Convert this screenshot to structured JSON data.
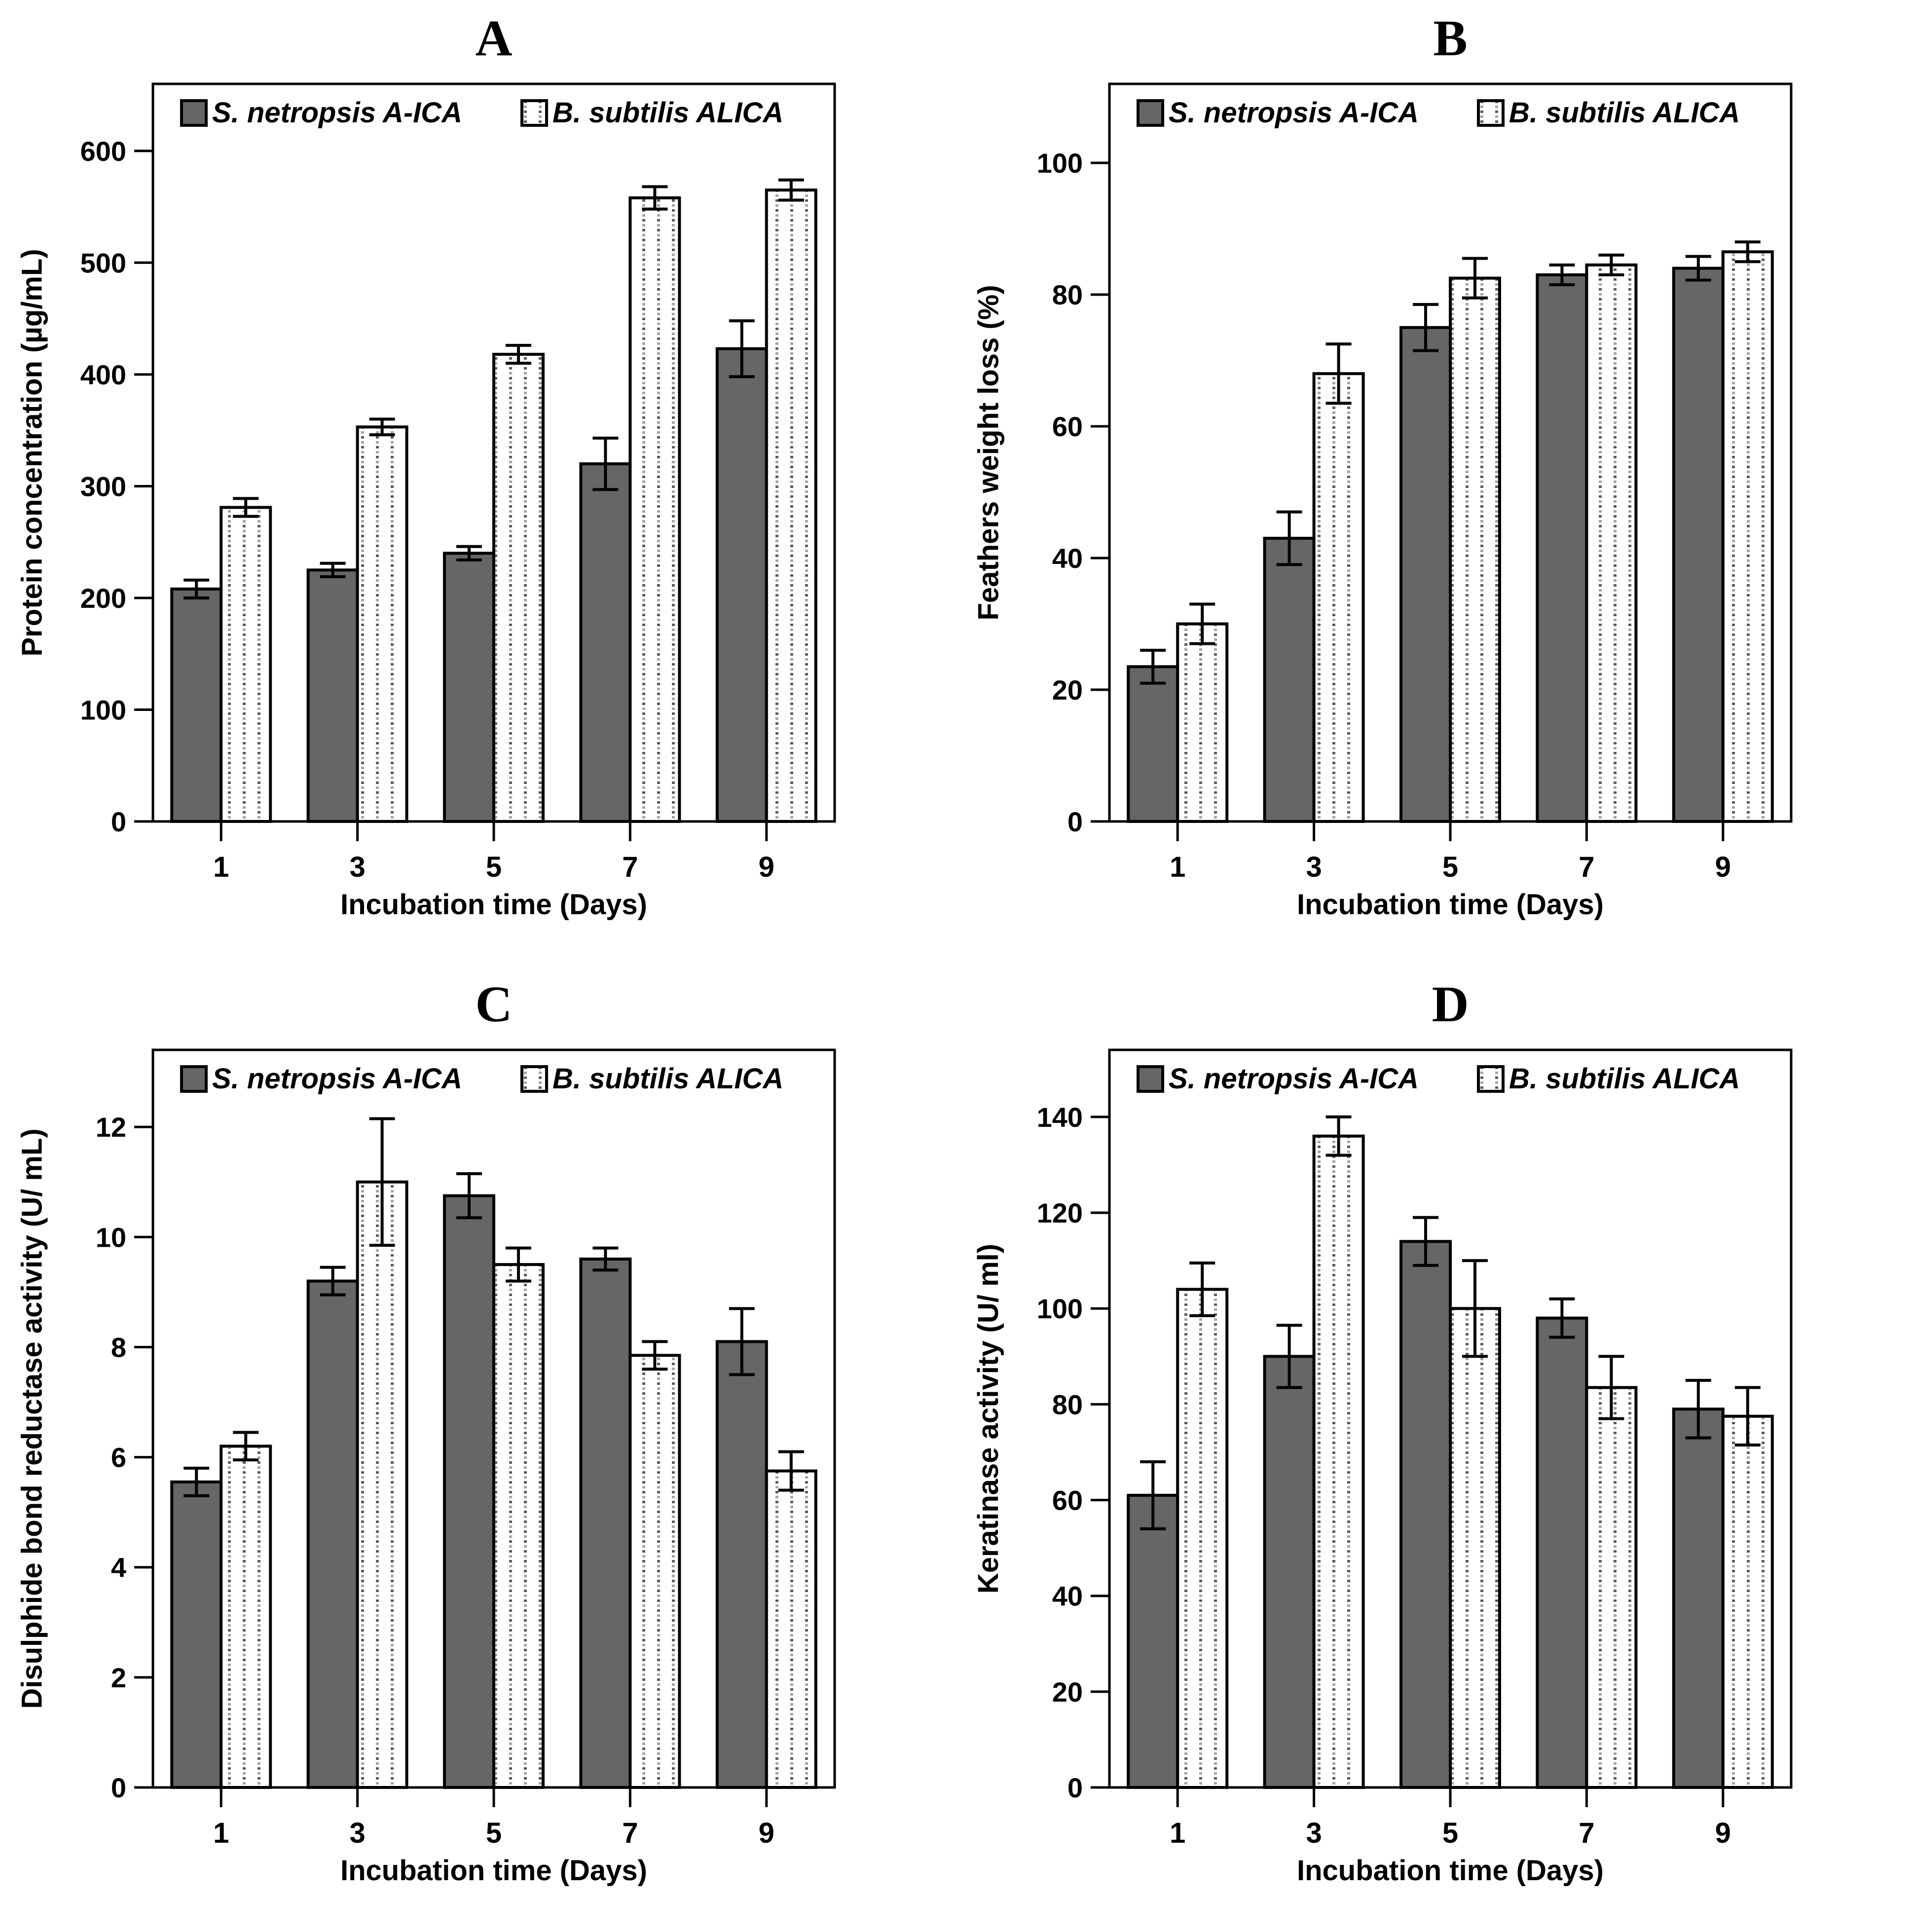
{
  "figure": {
    "legend": [
      {
        "label": "S. netropsis A-ICA",
        "swatch": "solid-gray-square"
      },
      {
        "label": "B. subtilis ALICA",
        "swatch": "dotted-white-square"
      }
    ],
    "colors": {
      "bar_dark": "#666666",
      "bar_dotted_bg": "#ffffff",
      "dot": "#5a5a5a",
      "axis": "#000000",
      "text": "#000000",
      "background": "#ffffff"
    }
  },
  "chart_data": [
    {
      "type": "bar",
      "panel_label": "A",
      "xlabel": "Incubation time (Days)",
      "ylabel": "Protein concentration (µg/mL)",
      "categories": [
        "1",
        "3",
        "5",
        "7",
        "9"
      ],
      "yticks": [
        0,
        100,
        200,
        300,
        400,
        500,
        600
      ],
      "ylim": [
        0,
        660
      ],
      "grid": false,
      "legend_position": "top-inside",
      "series": [
        {
          "name": "S. netropsis A-ICA",
          "values": [
            208,
            225,
            240,
            320,
            423
          ],
          "errors": [
            8,
            6,
            6,
            23,
            25
          ]
        },
        {
          "name": "B. subtilis ALICA",
          "values": [
            281,
            353,
            418,
            558,
            565
          ],
          "errors": [
            8,
            7,
            8,
            10,
            9
          ]
        }
      ]
    },
    {
      "type": "bar",
      "panel_label": "B",
      "xlabel": "Incubation time (Days)",
      "ylabel": "Feathers weight loss (%)",
      "categories": [
        "1",
        "3",
        "5",
        "7",
        "9"
      ],
      "yticks": [
        0,
        20,
        40,
        60,
        80,
        100
      ],
      "ylim": [
        0,
        112
      ],
      "grid": false,
      "legend_position": "top-inside",
      "series": [
        {
          "name": "S. netropsis A-ICA",
          "values": [
            23.5,
            43,
            75,
            83,
            84
          ],
          "errors": [
            2.5,
            4,
            3.5,
            1.5,
            1.8
          ]
        },
        {
          "name": "B. subtilis ALICA",
          "values": [
            30,
            68,
            82.5,
            84.5,
            86.5
          ],
          "errors": [
            3,
            4.5,
            3,
            1.5,
            1.5
          ]
        }
      ]
    },
    {
      "type": "bar",
      "panel_label": "C",
      "xlabel": "Incubation time (Days)",
      "ylabel": "Disulphide bond reductase activity (U/ mL)",
      "categories": [
        "1",
        "3",
        "5",
        "7",
        "9"
      ],
      "yticks": [
        0,
        2,
        4,
        6,
        8,
        10,
        12
      ],
      "ylim": [
        0,
        13.4
      ],
      "grid": false,
      "legend_position": "top-inside",
      "series": [
        {
          "name": "S. netropsis A-ICA",
          "values": [
            5.55,
            9.2,
            10.75,
            9.6,
            8.1
          ],
          "errors": [
            0.25,
            0.25,
            0.4,
            0.2,
            0.6
          ]
        },
        {
          "name": "B. subtilis ALICA",
          "values": [
            6.2,
            11.0,
            9.5,
            7.85,
            5.75
          ],
          "errors": [
            0.25,
            1.15,
            0.3,
            0.25,
            0.35
          ]
        }
      ]
    },
    {
      "type": "bar",
      "panel_label": "D",
      "xlabel": "Incubation time (Days)",
      "ylabel": "Keratinase activity (U/ ml)",
      "categories": [
        "1",
        "3",
        "5",
        "7",
        "9"
      ],
      "yticks": [
        0,
        20,
        40,
        60,
        80,
        100,
        120,
        140
      ],
      "ylim": [
        0,
        154
      ],
      "grid": false,
      "legend_position": "top-inside",
      "series": [
        {
          "name": "S. netropsis A-ICA",
          "values": [
            61,
            90,
            114,
            98,
            79
          ],
          "errors": [
            7,
            6.5,
            5,
            4,
            6
          ]
        },
        {
          "name": "B. subtilis ALICA",
          "values": [
            104,
            136,
            100,
            83.5,
            77.5
          ],
          "errors": [
            5.5,
            4,
            10,
            6.5,
            6
          ]
        }
      ]
    }
  ]
}
